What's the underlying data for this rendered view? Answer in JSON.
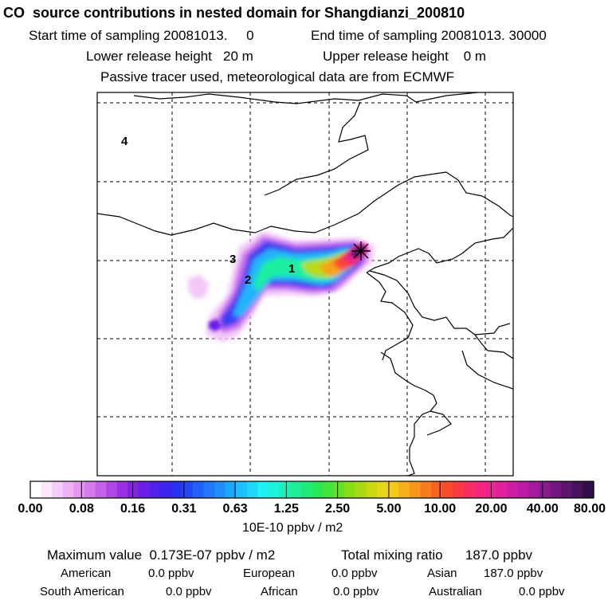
{
  "title": "CO  source contributions in nested domain for Shangdianzi_200810",
  "sampling": {
    "start": "Start time of sampling 20081013.     0",
    "end": "End time of sampling 20081013. 30000"
  },
  "release": {
    "lower": "Lower release height   20 m",
    "upper": "Upper release height    0 m"
  },
  "note": "Passive tracer used, meteorological data are from ECMWF",
  "map": {
    "region_labels": [
      "4",
      "3",
      "2",
      "1"
    ],
    "colors": {
      "frame": "#000000",
      "grid": "#000000",
      "coast": "#000000"
    }
  },
  "colorbar": {
    "tick_labels": [
      "0.00",
      "0.08",
      "0.16",
      "0.31",
      "0.63",
      "1.25",
      "2.50",
      "5.00",
      "10.00",
      "20.00",
      "40.00",
      "80.00"
    ],
    "units": "10E-10 ppbv / m2",
    "colors": [
      "#ffffff",
      "#fbe6fb",
      "#f6ccf8",
      "#eeb2f4",
      "#e497f0",
      "#d57ced",
      "#c462ea",
      "#b146e6",
      "#9c2ee3",
      "#8420e3",
      "#6b1ee6",
      "#531fea",
      "#3c23ee",
      "#2732f3",
      "#2448f6",
      "#2360f8",
      "#2178fa",
      "#1f90fb",
      "#1ea8fb",
      "#1ec0fb",
      "#1ed8f9",
      "#1ef0f4",
      "#1ef2d8",
      "#1ef0b8",
      "#1eee98",
      "#1eeb78",
      "#28e858",
      "#44e43c",
      "#66e025",
      "#88dd16",
      "#aada12",
      "#cad814",
      "#e6d716",
      "#f6c818",
      "#f8b01a",
      "#f8961c",
      "#f87c1e",
      "#f86222",
      "#f84a2c",
      "#f83a44",
      "#f82e60",
      "#f6267c",
      "#ee2290",
      "#e0209e",
      "#ce1ea4",
      "#ba1ca4",
      "#a41a9c",
      "#8c1890",
      "#741680",
      "#5c146e",
      "#46125a",
      "#301048"
    ]
  },
  "summary": {
    "maximum_label": "Maximum value  0.173E-07 ppbv / m2",
    "total_label": "Total mixing ratio      187.0 ppbv",
    "regions": [
      {
        "name": "American",
        "value": "0.0 ppbv"
      },
      {
        "name": "European",
        "value": "0.0 ppbv"
      },
      {
        "name": "Asian",
        "value": "187.0 ppbv"
      },
      {
        "name": "South American",
        "value": "0.0 ppbv"
      },
      {
        "name": "African",
        "value": "0.0 ppbv"
      },
      {
        "name": "Australian",
        "value": "0.0 ppbv"
      }
    ]
  }
}
